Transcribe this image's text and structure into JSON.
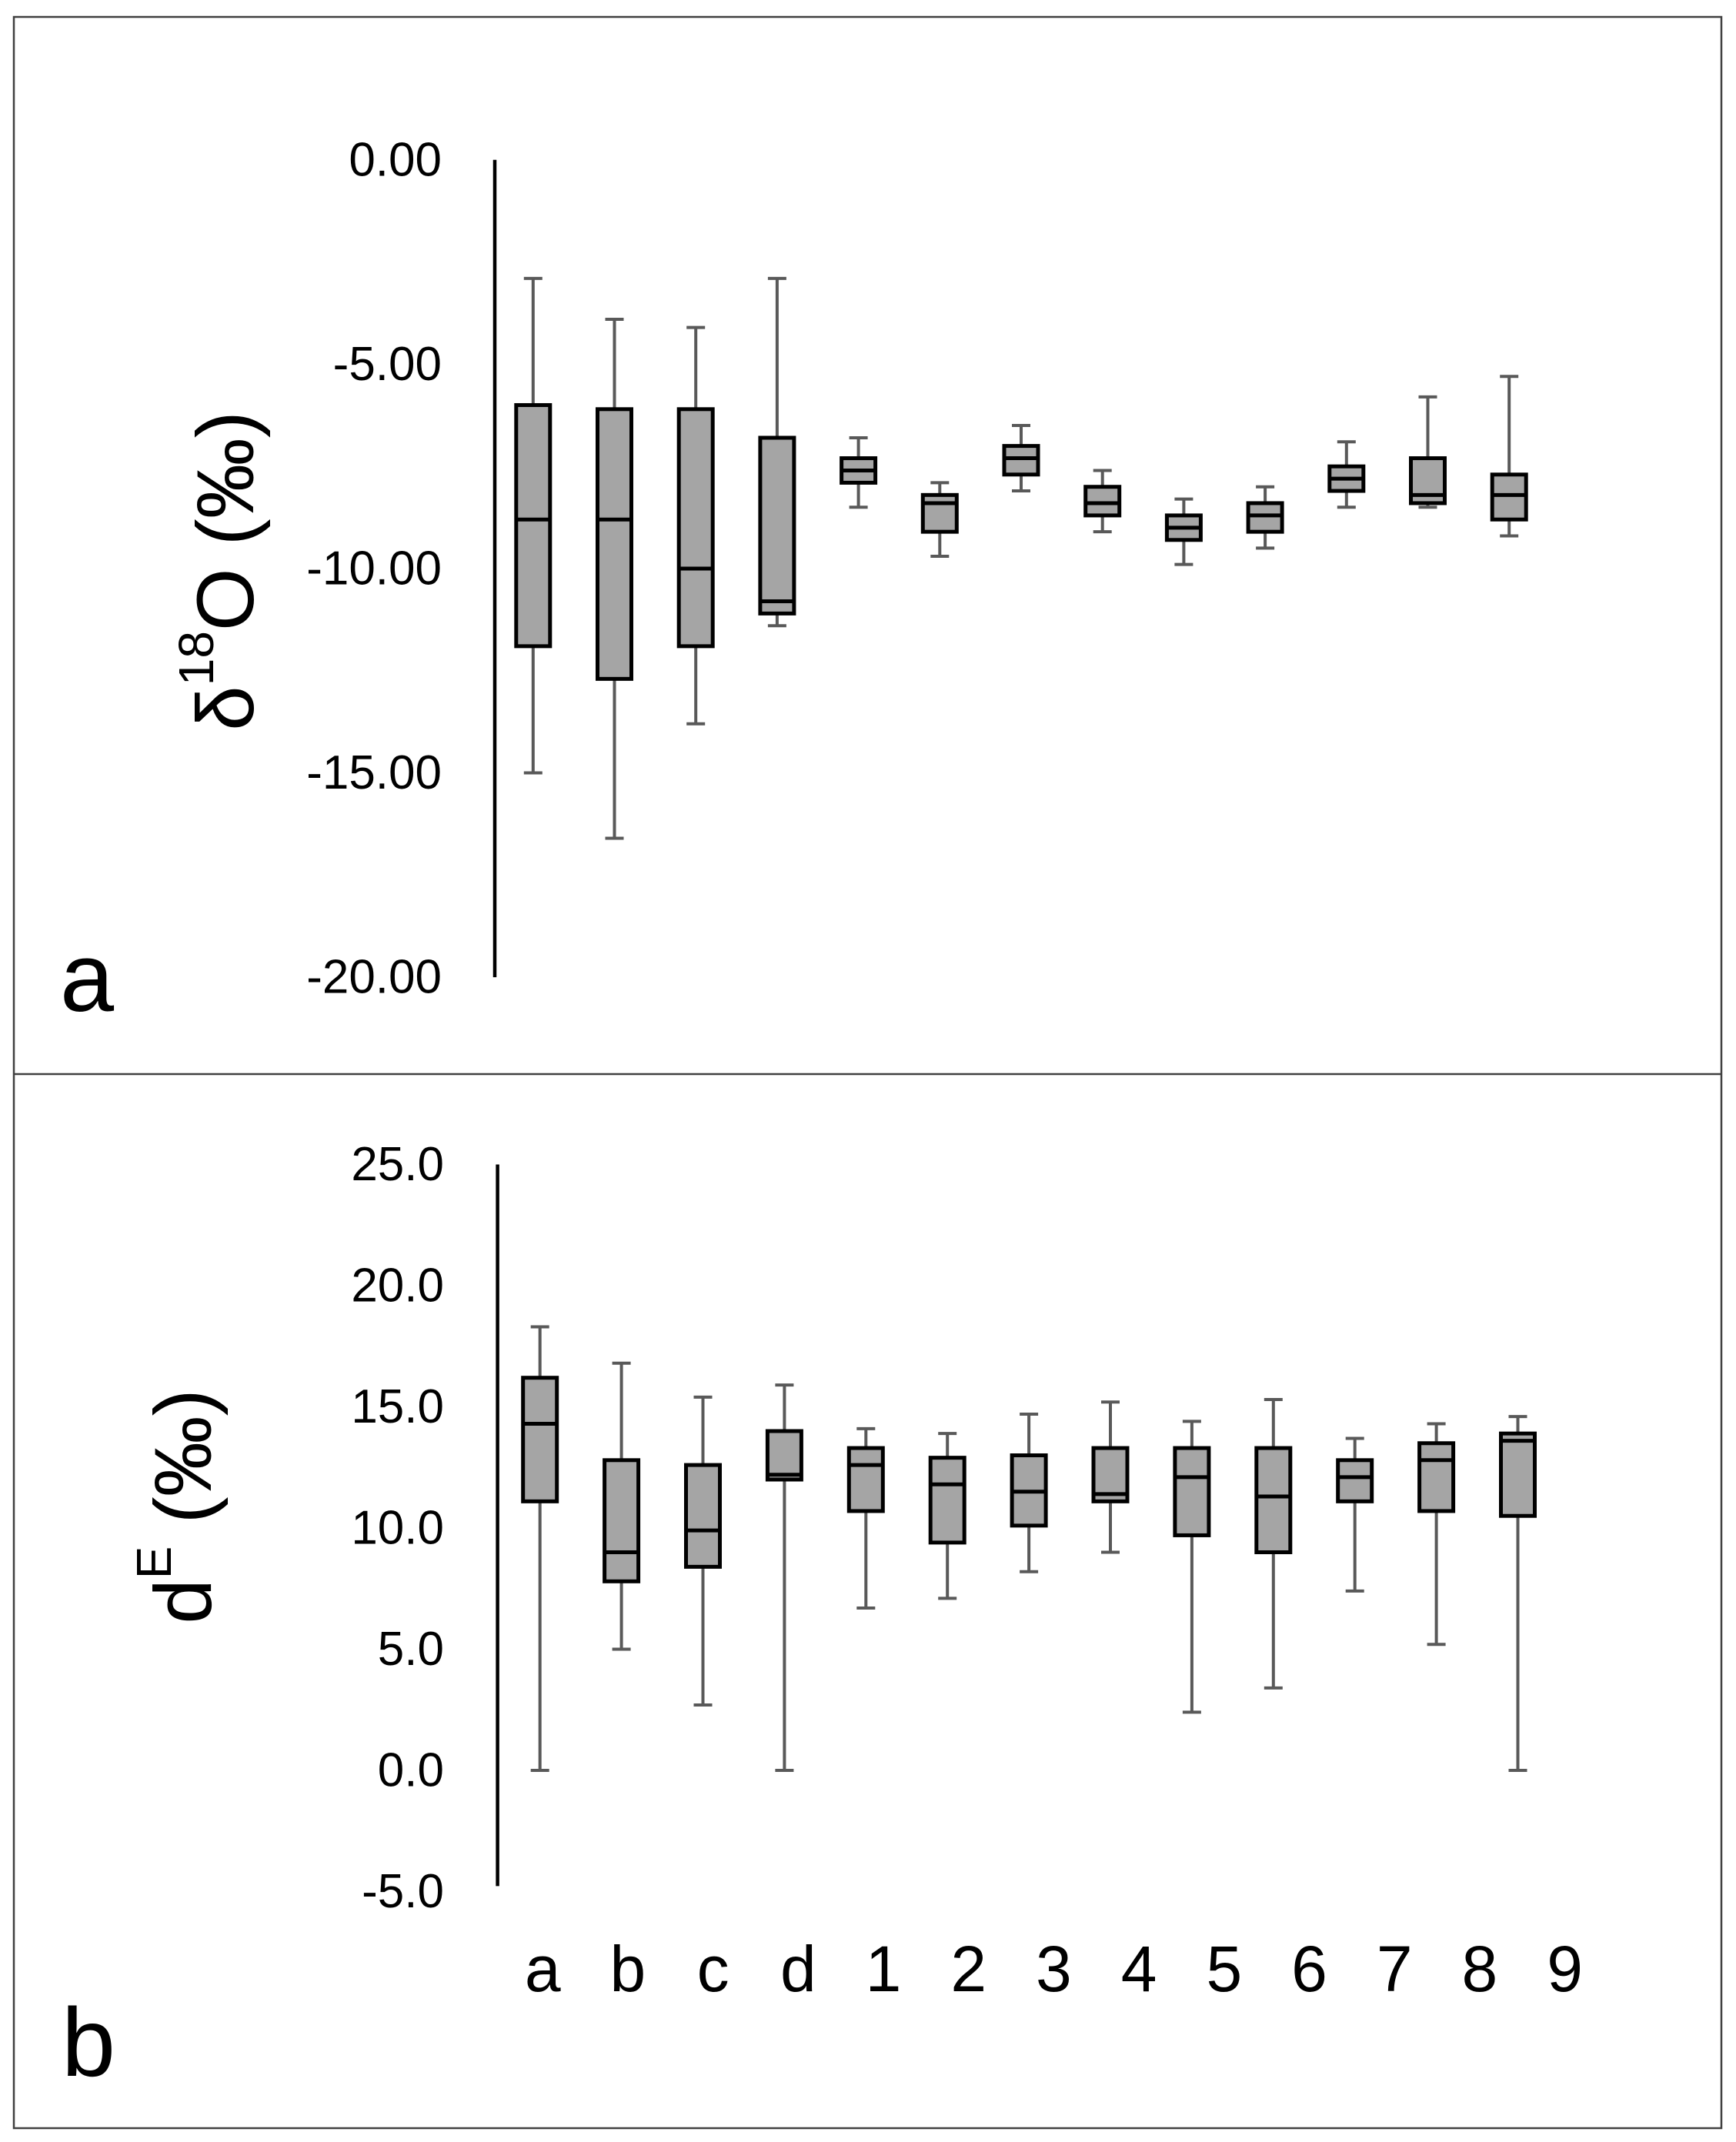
{
  "chart_data": {
    "type": "box",
    "categories": [
      "a",
      "b",
      "c",
      "d",
      "1",
      "2",
      "3",
      "4",
      "5",
      "6",
      "7",
      "8",
      "9"
    ],
    "panels": [
      {
        "panel_label": "a",
        "ylabel": {
          "base": "δ",
          "sup": "18",
          "rest": "O (‰)"
        },
        "ylim": [
          -20,
          0
        ],
        "yticks": [
          0,
          -5,
          -10,
          -15,
          -20
        ],
        "ytick_labels": [
          "0.00",
          "-5.00",
          "-10.00",
          "-15.00",
          "-20.00"
        ],
        "boxes": [
          {
            "max": -2.9,
            "q3": -6.0,
            "median": -8.8,
            "q1": -11.9,
            "min": -15.0
          },
          {
            "max": -3.9,
            "q3": -6.1,
            "median": -8.8,
            "q1": -12.7,
            "min": -16.6
          },
          {
            "max": -4.1,
            "q3": -6.1,
            "median": -10.0,
            "q1": -11.9,
            "min": -13.8
          },
          {
            "max": -2.9,
            "q3": -6.8,
            "median": -10.8,
            "q1": -11.1,
            "min": -11.4
          },
          {
            "max": -6.8,
            "q3": -7.3,
            "median": -7.6,
            "q1": -7.9,
            "min": -8.5
          },
          {
            "max": -7.9,
            "q3": -8.2,
            "median": -8.4,
            "q1": -9.1,
            "min": -9.7
          },
          {
            "max": -6.5,
            "q3": -7.0,
            "median": -7.3,
            "q1": -7.7,
            "min": -8.1
          },
          {
            "max": -7.6,
            "q3": -8.0,
            "median": -8.4,
            "q1": -8.7,
            "min": -9.1
          },
          {
            "max": -8.3,
            "q3": -8.7,
            "median": -9.0,
            "q1": -9.3,
            "min": -9.9
          },
          {
            "max": -8.0,
            "q3": -8.4,
            "median": -8.7,
            "q1": -9.1,
            "min": -9.5
          },
          {
            "max": -6.9,
            "q3": -7.5,
            "median": -7.8,
            "q1": -8.1,
            "min": -8.5
          },
          {
            "max": -5.8,
            "q3": -7.3,
            "median": -8.2,
            "q1": -8.4,
            "min": -8.5
          },
          {
            "max": -5.3,
            "q3": -7.7,
            "median": -8.2,
            "q1": -8.8,
            "min": -9.2
          }
        ]
      },
      {
        "panel_label": "b",
        "ylabel": {
          "base": "d",
          "sup": "E",
          "rest": " (‰)"
        },
        "ylim": [
          -5,
          25
        ],
        "yticks": [
          25,
          20,
          15,
          10,
          5,
          0,
          -5
        ],
        "ytick_labels": [
          "25.0",
          "20.0",
          "15.0",
          "10.0",
          "5.0",
          "0.0",
          "-5.0"
        ],
        "boxes": [
          {
            "max": 18.3,
            "q3": 16.2,
            "median": 14.3,
            "q1": 11.1,
            "min": 0.0
          },
          {
            "max": 16.8,
            "q3": 12.8,
            "median": 9.0,
            "q1": 7.8,
            "min": 5.0
          },
          {
            "max": 15.4,
            "q3": 12.6,
            "median": 9.9,
            "q1": 8.4,
            "min": 2.7
          },
          {
            "max": 15.9,
            "q3": 14.0,
            "median": 12.2,
            "q1": 12.0,
            "min": 0.0
          },
          {
            "max": 14.1,
            "q3": 13.3,
            "median": 12.6,
            "q1": 10.7,
            "min": 6.7
          },
          {
            "max": 13.9,
            "q3": 12.9,
            "median": 11.8,
            "q1": 9.4,
            "min": 7.1
          },
          {
            "max": 14.7,
            "q3": 13.0,
            "median": 11.5,
            "q1": 10.1,
            "min": 8.2
          },
          {
            "max": 15.2,
            "q3": 13.3,
            "median": 11.4,
            "q1": 11.1,
            "min": 9.0
          },
          {
            "max": 14.4,
            "q3": 13.3,
            "median": 12.1,
            "q1": 9.7,
            "min": 2.4
          },
          {
            "max": 15.3,
            "q3": 13.3,
            "median": 11.3,
            "q1": 9.0,
            "min": 3.4
          },
          {
            "max": 13.7,
            "q3": 12.8,
            "median": 12.1,
            "q1": 11.1,
            "min": 7.4
          },
          {
            "max": 14.3,
            "q3": 13.5,
            "median": 12.8,
            "q1": 10.7,
            "min": 5.2
          },
          {
            "max": 14.6,
            "q3": 13.9,
            "median": 13.6,
            "q1": 10.5,
            "min": 0.0
          }
        ]
      }
    ]
  },
  "colors": {
    "box_fill": "#a5a5a5",
    "box_edge": "#000000",
    "whisker": "#595959",
    "axis": "#000000",
    "frame": "#404040"
  }
}
